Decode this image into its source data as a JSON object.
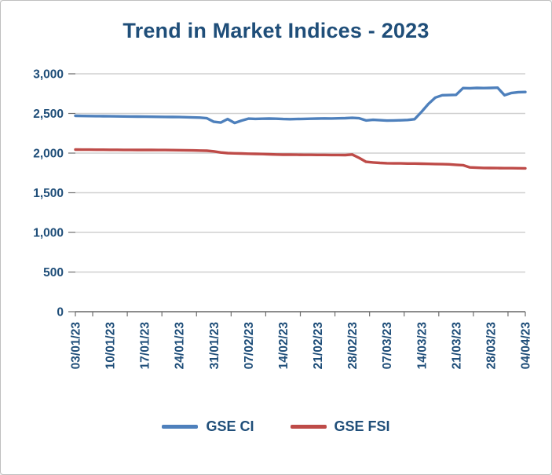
{
  "chart_data": {
    "type": "line",
    "title": "Trend in Market Indices - 2023",
    "xlabel": "",
    "ylabel": "",
    "ylim": [
      0,
      3000
    ],
    "ytick_step": 500,
    "ytick_labels": [
      "0",
      "500",
      "1,000",
      "1,500",
      "2,000",
      "2,500",
      "3,000"
    ],
    "grid": true,
    "legend_position": "bottom",
    "colors": {
      "grid": "#d0d0d0",
      "axis": "#6e6e6e",
      "label": "#1F4E79",
      "title": "#1F4E79"
    },
    "x_tick_labels": [
      "03/01/23",
      "10/01/23",
      "17/01/23",
      "24/01/23",
      "31/01/23",
      "07/02/23",
      "14/02/23",
      "21/02/23",
      "28/02/23",
      "07/03/23",
      "14/03/23",
      "21/03/23",
      "28/03/23",
      "04/04/23"
    ],
    "x_tick_indices": [
      0,
      5,
      10,
      15,
      20,
      25,
      30,
      35,
      40,
      45,
      50,
      55,
      60,
      65
    ],
    "series": [
      {
        "name": "GSE CI",
        "color": "#4E80BC",
        "values": [
          2470,
          2468,
          2467,
          2466,
          2465,
          2464,
          2463,
          2462,
          2461,
          2460,
          2459,
          2458,
          2457,
          2456,
          2455,
          2454,
          2452,
          2450,
          2448,
          2440,
          2395,
          2385,
          2430,
          2380,
          2410,
          2435,
          2432,
          2434,
          2436,
          2434,
          2430,
          2428,
          2430,
          2432,
          2434,
          2436,
          2438,
          2437,
          2439,
          2441,
          2445,
          2440,
          2412,
          2420,
          2415,
          2410,
          2412,
          2414,
          2418,
          2428,
          2520,
          2620,
          2700,
          2730,
          2732,
          2735,
          2820,
          2818,
          2822,
          2820,
          2822,
          2825,
          2730,
          2758,
          2768,
          2770
        ]
      },
      {
        "name": "GSE FSI",
        "color": "#BE4B48",
        "values": [
          2045,
          2044,
          2044,
          2043,
          2043,
          2042,
          2042,
          2041,
          2041,
          2040,
          2040,
          2040,
          2039,
          2039,
          2038,
          2037,
          2036,
          2034,
          2032,
          2030,
          2022,
          2008,
          2000,
          1997,
          1995,
          1992,
          1990,
          1988,
          1985,
          1982,
          1980,
          1980,
          1979,
          1978,
          1978,
          1977,
          1977,
          1976,
          1976,
          1975,
          1982,
          1940,
          1890,
          1882,
          1876,
          1872,
          1870,
          1870,
          1868,
          1868,
          1866,
          1864,
          1862,
          1860,
          1858,
          1852,
          1848,
          1820,
          1816,
          1813,
          1812,
          1811,
          1810,
          1810,
          1809,
          1808
        ]
      }
    ]
  }
}
